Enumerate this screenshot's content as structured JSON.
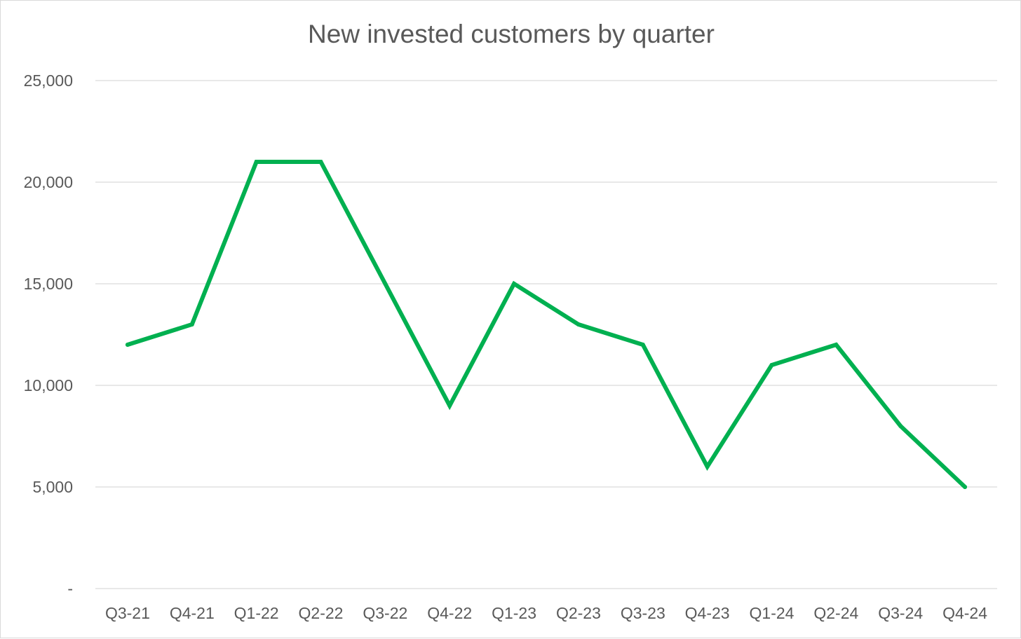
{
  "chart_data": {
    "type": "line",
    "title": "New invested customers by quarter",
    "xlabel": "",
    "ylabel": "",
    "categories": [
      "Q3-21",
      "Q4-21",
      "Q1-22",
      "Q2-22",
      "Q3-22",
      "Q4-22",
      "Q1-23",
      "Q2-23",
      "Q3-23",
      "Q4-23",
      "Q1-24",
      "Q2-24",
      "Q3-24",
      "Q4-24"
    ],
    "series": [
      {
        "values": [
          12000,
          13000,
          21000,
          21000,
          15000,
          9000,
          15000,
          13000,
          12000,
          6000,
          11000,
          12000,
          8000,
          5000
        ],
        "color": "#00b050"
      }
    ],
    "ylim": [
      0,
      25000
    ],
    "yticks": [
      0,
      5000,
      10000,
      15000,
      20000,
      25000
    ],
    "ytick_labels": [
      "-",
      "5,000",
      "10,000",
      "15,000",
      "20,000",
      "25,000"
    ],
    "grid": true,
    "legend": "none",
    "gridline_color": "#d9d9d9",
    "text_color": "#595959"
  }
}
